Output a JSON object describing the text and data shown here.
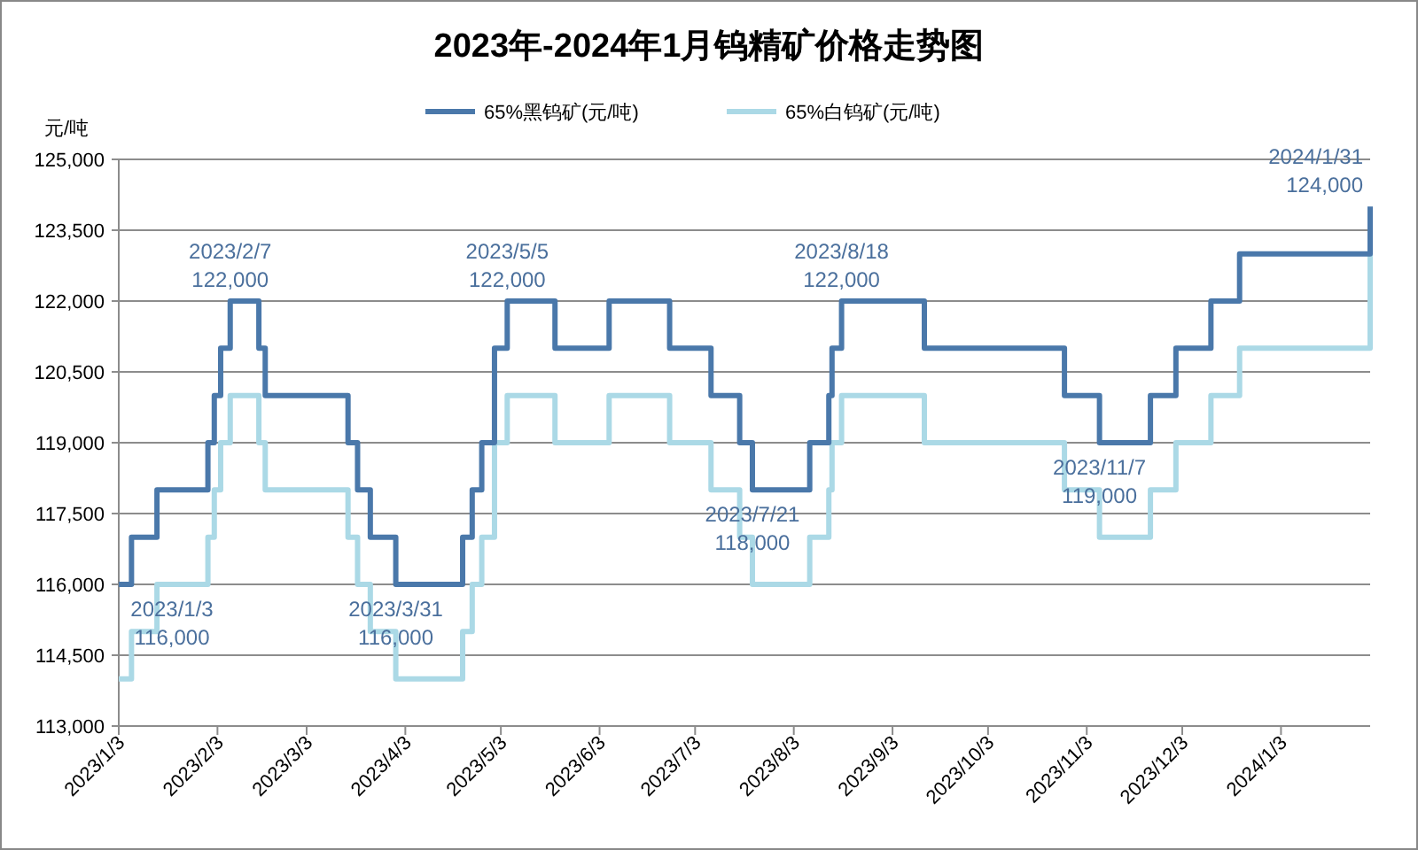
{
  "chart_data": {
    "type": "step",
    "title": "2023年-2024年1月钨精矿价格走势图",
    "ylabel": "元/吨",
    "xlim": [
      "2023-01-03",
      "2024-01-31"
    ],
    "xticks": [
      {
        "value": "2023-01-03",
        "label": "2023/1/3"
      },
      {
        "value": "2023-02-03",
        "label": "2023/2/3"
      },
      {
        "value": "2023-03-03",
        "label": "2023/3/3"
      },
      {
        "value": "2023-04-03",
        "label": "2023/4/3"
      },
      {
        "value": "2023-05-03",
        "label": "2023/5/3"
      },
      {
        "value": "2023-06-03",
        "label": "2023/6/3"
      },
      {
        "value": "2023-07-03",
        "label": "2023/7/3"
      },
      {
        "value": "2023-08-03",
        "label": "2023/8/3"
      },
      {
        "value": "2023-09-03",
        "label": "2023/9/3"
      },
      {
        "value": "2023-10-03",
        "label": "2023/10/3"
      },
      {
        "value": "2023-11-03",
        "label": "2023/11/3"
      },
      {
        "value": "2023-12-03",
        "label": "2023/12/3"
      },
      {
        "value": "2024-01-03",
        "label": "2024/1/3"
      }
    ],
    "ylim": [
      113000,
      125000
    ],
    "yticks": [
      {
        "value": 113000,
        "label": "113,000"
      },
      {
        "value": 114500,
        "label": "114,500"
      },
      {
        "value": 116000,
        "label": "116,000"
      },
      {
        "value": 117500,
        "label": "117,500"
      },
      {
        "value": 119000,
        "label": "119,000"
      },
      {
        "value": 120500,
        "label": "120,500"
      },
      {
        "value": 122000,
        "label": "122,000"
      },
      {
        "value": 123500,
        "label": "123,500"
      },
      {
        "value": 125000,
        "label": "125,000"
      }
    ],
    "grid": "y",
    "legend": "top",
    "marker": "none",
    "line_style": "solid",
    "series": [
      {
        "name": "65%黑钨矿(元/吨)",
        "color": "#4a78aa",
        "x": [
          "2023-01-03",
          "2023-01-07",
          "2023-01-15",
          "2023-01-31",
          "2023-02-02",
          "2023-02-04",
          "2023-02-07",
          "2023-02-16",
          "2023-02-18",
          "2023-03-16",
          "2023-03-19",
          "2023-03-23",
          "2023-03-31",
          "2023-04-21",
          "2023-04-24",
          "2023-04-27",
          "2023-05-01",
          "2023-05-05",
          "2023-05-20",
          "2023-06-06",
          "2023-06-25",
          "2023-07-08",
          "2023-07-17",
          "2023-07-21",
          "2023-08-08",
          "2023-08-14",
          "2023-08-15",
          "2023-08-18",
          "2023-09-13",
          "2023-10-27",
          "2023-11-07",
          "2023-11-23",
          "2023-12-01",
          "2023-12-12",
          "2023-12-21",
          "2024-01-30",
          "2024-01-31"
        ],
        "values": [
          116000,
          117000,
          118000,
          119000,
          120000,
          121000,
          122000,
          121000,
          120000,
          119000,
          118000,
          117000,
          116000,
          117000,
          118000,
          119000,
          121000,
          122000,
          121000,
          122000,
          121000,
          120000,
          119000,
          118000,
          119000,
          120000,
          121000,
          122000,
          121000,
          120000,
          119000,
          120000,
          121000,
          122000,
          123000,
          123000,
          124000
        ]
      },
      {
        "name": "65%白钨矿(元/吨)",
        "color": "#abd9e6",
        "x": [
          "2023-01-03",
          "2023-01-07",
          "2023-01-15",
          "2023-01-31",
          "2023-02-02",
          "2023-02-04",
          "2023-02-07",
          "2023-02-16",
          "2023-02-18",
          "2023-03-16",
          "2023-03-19",
          "2023-03-23",
          "2023-03-31",
          "2023-04-21",
          "2023-04-24",
          "2023-04-27",
          "2023-05-01",
          "2023-05-05",
          "2023-05-20",
          "2023-06-06",
          "2023-06-25",
          "2023-07-08",
          "2023-07-17",
          "2023-07-21",
          "2023-08-08",
          "2023-08-14",
          "2023-08-15",
          "2023-08-18",
          "2023-09-13",
          "2023-10-27",
          "2023-11-07",
          "2023-11-23",
          "2023-12-01",
          "2023-12-12",
          "2023-12-21",
          "2024-01-30",
          "2024-01-31"
        ],
        "values": [
          114000,
          115000,
          116000,
          117000,
          118000,
          119000,
          120000,
          119000,
          118000,
          117000,
          116000,
          115000,
          114000,
          115000,
          116000,
          117000,
          119000,
          120000,
          119000,
          120000,
          119000,
          118000,
          117000,
          116000,
          117000,
          118000,
          119000,
          120000,
          119000,
          118000,
          117000,
          118000,
          119000,
          120000,
          121000,
          121000,
          123000
        ]
      }
    ],
    "annotations": [
      {
        "text": "2023/1/3\n116,000",
        "x": "2023-01-03",
        "y": 116000
      },
      {
        "text": "2023/2/7\n122,000",
        "x": "2023-02-07",
        "y": 122000
      },
      {
        "text": "2023/3/31\n116,000",
        "x": "2023-03-31",
        "y": 116000
      },
      {
        "text": "2023/5/5\n122,000",
        "x": "2023-05-05",
        "y": 122000
      },
      {
        "text": "2023/7/21\n118,000",
        "x": "2023-07-21",
        "y": 118000
      },
      {
        "text": "2023/8/18\n122,000",
        "x": "2023-08-18",
        "y": 122000
      },
      {
        "text": "2023/11/7\n119,000",
        "x": "2023-11-07",
        "y": 119000
      },
      {
        "text": "2024/1/31\n124,000",
        "x": "2024-01-31",
        "y": 124000
      }
    ]
  }
}
